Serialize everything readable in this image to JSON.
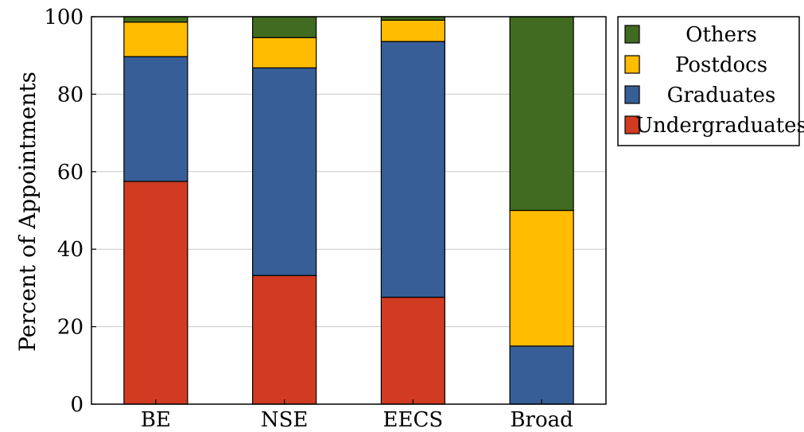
{
  "chart_data": {
    "type": "bar",
    "stacked": true,
    "categories": [
      "BE",
      "NSE",
      "EECS",
      "Broad"
    ],
    "series": [
      {
        "name": "Undergraduates",
        "color": "#d03b22",
        "values": [
          57.5,
          33.2,
          27.6,
          0
        ]
      },
      {
        "name": "Graduates",
        "color": "#375e96",
        "values": [
          32.2,
          53.6,
          66.0,
          15.0
        ]
      },
      {
        "name": "Postdocs",
        "color": "#ffbc00",
        "values": [
          8.9,
          7.8,
          5.5,
          35.0
        ]
      },
      {
        "name": "Others",
        "color": "#416b20",
        "values": [
          1.4,
          5.4,
          0.9,
          50.0
        ]
      }
    ],
    "ylabel": "Percent of Appointments",
    "ylim": [
      0,
      100
    ],
    "yticks": [
      "0",
      "20",
      "40",
      "60",
      "80",
      "100"
    ],
    "grid": true,
    "legend_position": "outside-top-right",
    "legend_order": [
      "Others",
      "Postdocs",
      "Graduates",
      "Undergraduates"
    ]
  }
}
